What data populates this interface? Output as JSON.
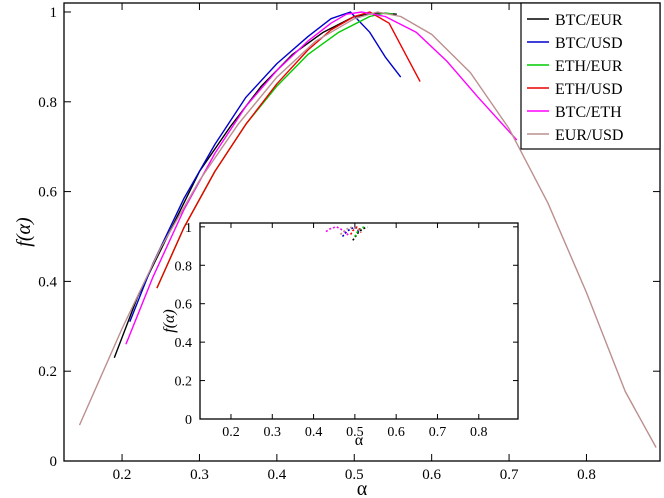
{
  "chart_data": [
    {
      "type": "line",
      "title": "",
      "xlabel": "α",
      "ylabel": "f(α)",
      "xlim": [
        0.125,
        0.895
      ],
      "ylim": [
        0,
        1.02
      ],
      "xticks": [
        0.2,
        0.3,
        0.4,
        0.5,
        0.6,
        0.7,
        0.8
      ],
      "yticks": [
        0,
        0.2,
        0.4,
        0.6,
        0.8,
        1
      ],
      "xtick_labels": [
        "0.2",
        "0.3",
        "0.4",
        "0.5",
        "0.6",
        "0.7",
        "0.8"
      ],
      "ytick_labels": [
        "0",
        "0.2",
        "0.4",
        "0.6",
        "0.8",
        "1"
      ],
      "grid": false,
      "legend_position": "top-right",
      "series": [
        {
          "name": "BTC/EUR",
          "color": "#000000",
          "x": [
            0.19,
            0.22,
            0.26,
            0.3,
            0.34,
            0.38,
            0.42,
            0.46,
            0.5,
            0.53,
            0.555
          ],
          "y": [
            0.23,
            0.365,
            0.505,
            0.645,
            0.745,
            0.835,
            0.905,
            0.955,
            0.99,
            0.998,
            0.995
          ]
        },
        {
          "name": "BTC/USD",
          "color": "#0000cc",
          "x": [
            0.21,
            0.24,
            0.28,
            0.32,
            0.36,
            0.4,
            0.44,
            0.47,
            0.495,
            0.52,
            0.54,
            0.56
          ],
          "y": [
            0.31,
            0.44,
            0.585,
            0.705,
            0.81,
            0.885,
            0.945,
            0.985,
            1.0,
            0.955,
            0.9,
            0.855
          ]
        },
        {
          "name": "ETH/EUR",
          "color": "#00cc00",
          "x": [
            0.245,
            0.28,
            0.32,
            0.36,
            0.4,
            0.44,
            0.48,
            0.52,
            0.54,
            0.55
          ],
          "y": [
            0.385,
            0.52,
            0.645,
            0.75,
            0.835,
            0.905,
            0.955,
            0.99,
            0.998,
            0.995
          ]
        },
        {
          "name": "ETH/USD",
          "color": "#ee0000",
          "x": [
            0.245,
            0.28,
            0.32,
            0.36,
            0.4,
            0.44,
            0.47,
            0.5,
            0.52,
            0.545,
            0.565,
            0.585
          ],
          "y": [
            0.385,
            0.52,
            0.645,
            0.75,
            0.84,
            0.915,
            0.96,
            0.99,
            1.0,
            0.975,
            0.91,
            0.845
          ]
        },
        {
          "name": "BTC/ETH",
          "color": "#ff00ff",
          "x": [
            0.205,
            0.24,
            0.28,
            0.32,
            0.36,
            0.4,
            0.44,
            0.47,
            0.49,
            0.51,
            0.54,
            0.58,
            0.62,
            0.66,
            0.71
          ],
          "y": [
            0.26,
            0.41,
            0.56,
            0.685,
            0.79,
            0.87,
            0.935,
            0.975,
            0.995,
            1.0,
            0.99,
            0.955,
            0.89,
            0.81,
            0.715
          ]
        },
        {
          "name": "EUR/USD",
          "color": "#bc8f8f",
          "x": [
            0.145,
            0.2,
            0.25,
            0.3,
            0.35,
            0.4,
            0.45,
            0.5,
            0.53,
            0.56,
            0.6,
            0.65,
            0.7,
            0.75,
            0.8,
            0.85,
            0.89
          ],
          "y": [
            0.08,
            0.295,
            0.475,
            0.625,
            0.75,
            0.855,
            0.935,
            0.985,
            1.0,
            0.99,
            0.95,
            0.865,
            0.74,
            0.575,
            0.375,
            0.155,
            0.03
          ]
        }
      ]
    },
    {
      "type": "scatter",
      "title": "",
      "xlabel": "α",
      "ylabel": "f(α)",
      "xlim": [
        0.125,
        0.895
      ],
      "ylim": [
        0,
        1.02
      ],
      "xticks": [
        0.2,
        0.3,
        0.4,
        0.5,
        0.6,
        0.7,
        0.8
      ],
      "yticks": [
        0,
        0.2,
        0.4,
        0.6,
        0.8,
        1
      ],
      "xtick_labels": [
        "0.2",
        "0.3",
        "0.4",
        "0.5",
        "0.6",
        "0.7",
        "0.8"
      ],
      "ytick_labels": [
        "0",
        "0.2",
        "0.4",
        "0.6",
        "0.8",
        "1"
      ],
      "grid": false,
      "series": [
        {
          "color": "#000000",
          "x": [
            0.495,
            0.505,
            0.51,
            0.52,
            0.525,
            0.53
          ],
          "y": [
            0.93,
            0.96,
            0.975,
            0.99,
            0.995,
            0.998
          ]
        },
        {
          "color": "#0000cc",
          "x": [
            0.47,
            0.48,
            0.49,
            0.5,
            0.505,
            0.51
          ],
          "y": [
            0.95,
            0.975,
            0.99,
            0.998,
            0.99,
            0.97
          ]
        },
        {
          "color": "#00cc00",
          "x": [
            0.5,
            0.505,
            0.51,
            0.515,
            0.52,
            0.525
          ],
          "y": [
            0.95,
            0.97,
            0.985,
            0.993,
            0.998,
            0.995
          ]
        },
        {
          "color": "#ee0000",
          "x": [
            0.49,
            0.495,
            0.5,
            0.505,
            0.51,
            0.515
          ],
          "y": [
            0.96,
            0.98,
            0.99,
            0.998,
            0.99,
            0.97
          ]
        },
        {
          "color": "#ff00ff",
          "x": [
            0.43,
            0.44,
            0.455,
            0.465,
            0.475,
            0.485
          ],
          "y": [
            0.975,
            0.99,
            1.0,
            0.99,
            0.975,
            0.955
          ]
        },
        {
          "color": "#bc8f8f",
          "x": [
            0.465,
            0.475,
            0.485,
            0.495,
            0.505,
            0.515
          ],
          "y": [
            0.96,
            0.98,
            0.995,
            0.998,
            0.99,
            0.975
          ]
        }
      ]
    }
  ]
}
